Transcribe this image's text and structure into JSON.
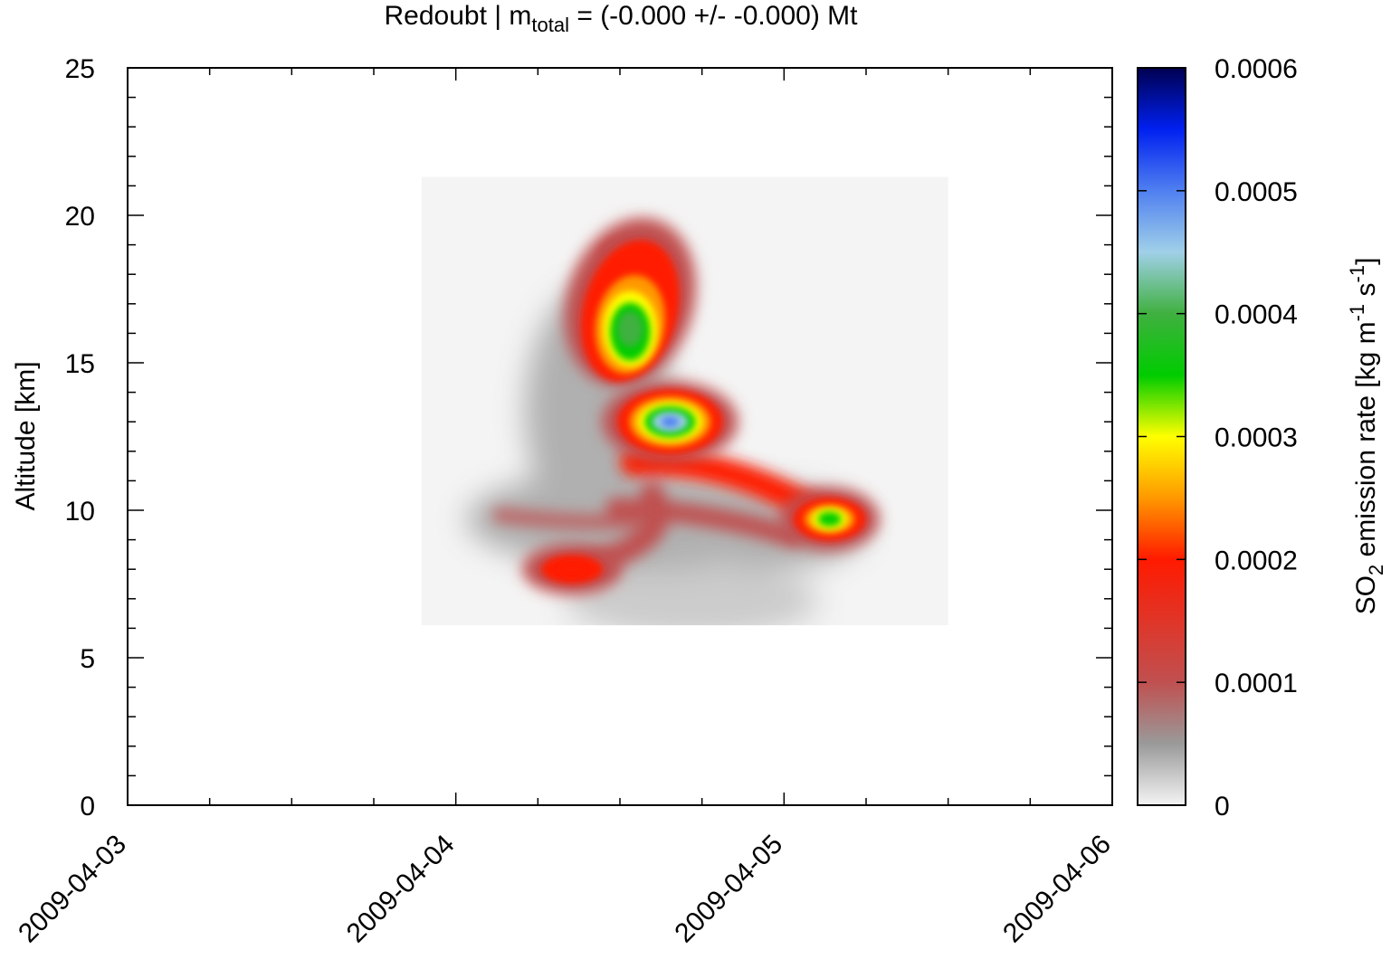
{
  "chart_data": {
    "type": "heatmap",
    "title": {
      "prefix": "Redoubt | m",
      "subscript": "total",
      "suffix": " = (-0.000 +/- -0.000) Mt"
    },
    "xlabel": "",
    "ylabel": "Altitude [km]",
    "x_axis": {
      "type": "date",
      "range": [
        "2009-04-03",
        "2009-04-06"
      ],
      "tick_labels": [
        "2009-04-03",
        "2009-04-04",
        "2009-04-05",
        "2009-04-06"
      ]
    },
    "y_axis": {
      "range": [
        0,
        25
      ],
      "tick_labels": [
        "0",
        "5",
        "10",
        "15",
        "20",
        "25"
      ]
    },
    "colorbar": {
      "label_parts": [
        "SO",
        "2",
        " emission rate [kg m",
        "-1",
        " s",
        "-1",
        "]"
      ],
      "range": [
        0,
        0.0006
      ],
      "tick_labels": [
        "0",
        "0.0001",
        "0.0002",
        "0.0003",
        "0.0004",
        "0.0005",
        "0.0006"
      ],
      "colors": {
        "0": "#f4f4f4",
        "0.00005": "#9a9a9a",
        "0.0001": "#c05050",
        "0.0002": "#ff1a00",
        "0.00025": "#ff9900",
        "0.0003": "#ffff00",
        "0.00035": "#00cc00",
        "0.0004": "#40b040",
        "0.00045": "#a0d0e8",
        "0.0005": "#5080f0",
        "0.00055": "#0020f0",
        "0.0006": "#000050"
      }
    },
    "grid": false,
    "legend": "colorbar-right",
    "data_region": {
      "x": [
        "2009-04-03T21:30",
        "2009-04-05T12:00"
      ],
      "y": [
        6.1,
        21.3
      ]
    },
    "features": [
      {
        "name": "upper-plume-core",
        "x": "2009-04-04T12:45",
        "y": 16.3,
        "peak": 0.00042
      },
      {
        "name": "upper-plume-top",
        "x": "2009-04-04T12:30",
        "y": 18.6,
        "peak": 0.00022
      },
      {
        "name": "central-core",
        "x": "2009-04-04T15:40",
        "y": 13.0,
        "peak": 0.00055
      },
      {
        "name": "horizontal-ridge",
        "x": "2009-04-04T20:00",
        "y": 11.5,
        "peak": 0.00021
      },
      {
        "name": "right-core",
        "x": "2009-04-05T03:20",
        "y": 9.7,
        "peak": 0.00038
      },
      {
        "name": "left-core",
        "x": "2009-04-04T08:30",
        "y": 8.0,
        "peak": 0.00023
      },
      {
        "name": "gray-envelope",
        "x": "2009-04-04T12:00",
        "y": 10.0,
        "peak": 8e-05
      }
    ]
  }
}
